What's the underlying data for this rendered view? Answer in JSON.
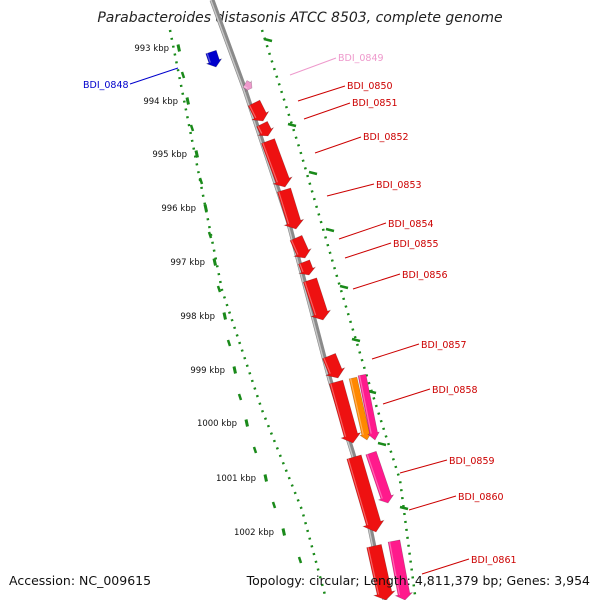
{
  "title": "Parabacteroides distasonis ATCC 8503, complete genome",
  "accession_text": "Accession: NC_009615",
  "topology_text": "Topology: circular; Length: 4,811,379 bp; Genes: 3,954",
  "colors": {
    "backbone": "#8a8a8a",
    "scale_dots": "#1a8a1a",
    "red_gene": "#ee1111",
    "orange_gene": "#ff8800",
    "pink_gene": "#ff1a8c",
    "blue_gene": "#0000cc",
    "light_pink_gene": "#ee99cc"
  },
  "scale_ticks": [
    "993 kbp",
    "994 kbp",
    "995 kbp",
    "996 kbp",
    "997 kbp",
    "998 kbp",
    "999 kbp",
    "1000 kbp",
    "1001 kbp",
    "1002 kbp"
  ],
  "gene_labels": [
    {
      "id": "BDI_0848",
      "color": "#0000cc"
    },
    {
      "id": "BDI_0849",
      "color": "#ee99cc"
    },
    {
      "id": "BDI_0850",
      "color": "#cc0000"
    },
    {
      "id": "BDI_0851",
      "color": "#cc0000"
    },
    {
      "id": "BDI_0852",
      "color": "#cc0000"
    },
    {
      "id": "BDI_0853",
      "color": "#cc0000"
    },
    {
      "id": "BDI_0854",
      "color": "#cc0000"
    },
    {
      "id": "BDI_0855",
      "color": "#cc0000"
    },
    {
      "id": "BDI_0856",
      "color": "#cc0000"
    },
    {
      "id": "BDI_0857",
      "color": "#cc0000"
    },
    {
      "id": "BDI_0858",
      "color": "#cc0000"
    },
    {
      "id": "BDI_0859",
      "color": "#cc0000"
    },
    {
      "id": "BDI_0860",
      "color": "#cc0000"
    },
    {
      "id": "BDI_0861",
      "color": "#cc0000"
    }
  ]
}
